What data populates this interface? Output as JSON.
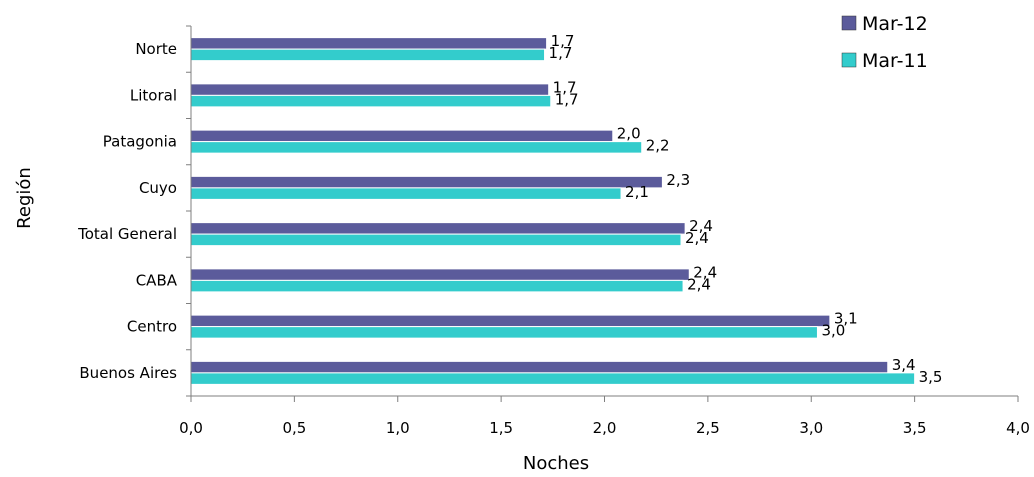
{
  "chart_data": {
    "type": "bar",
    "orientation": "horizontal",
    "xlabel": "Noches",
    "ylabel": "Región",
    "xlim": [
      0,
      4
    ],
    "x_ticks": [
      "0,0",
      "0,5",
      "1,0",
      "1,5",
      "2,0",
      "2,5",
      "3,0",
      "3,5",
      "4,0"
    ],
    "grid": false,
    "legend_position": "top-right",
    "categories": [
      "Norte",
      "Litoral",
      "Patagonia",
      "Cuyo",
      "Total General",
      "CABA",
      "Centro",
      "Buenos Aires"
    ],
    "series": [
      {
        "name": "Mar-12",
        "color": "#5b5b9b",
        "values": [
          1.72,
          1.73,
          2.04,
          2.28,
          2.39,
          2.41,
          3.09,
          3.37
        ],
        "labels": [
          "1,7",
          "1,7",
          "2,0",
          "2,3",
          "2,4",
          "2,4",
          "3,1",
          "3,4"
        ]
      },
      {
        "name": "Mar-11",
        "color": "#33cccc",
        "values": [
          1.71,
          1.74,
          2.18,
          2.08,
          2.37,
          2.38,
          3.03,
          3.5
        ],
        "labels": [
          "1,7",
          "1,7",
          "2,2",
          "2,1",
          "2,4",
          "2,4",
          "3,0",
          "3,5"
        ]
      }
    ]
  }
}
